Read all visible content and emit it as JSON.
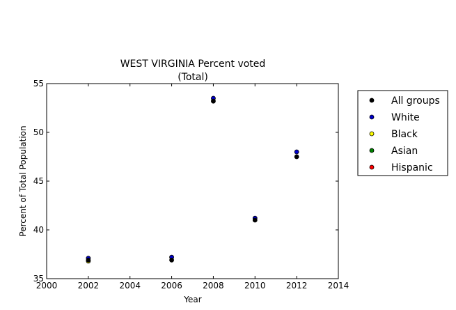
{
  "chart_data": {
    "type": "scatter",
    "title": "WEST VIRGINIA Percent voted",
    "subtitle": "(Total)",
    "xlabel": "Year",
    "ylabel": "Percent of Total Population",
    "xlim": [
      2000,
      2014
    ],
    "ylim": [
      35,
      55
    ],
    "xticks": [
      2000,
      2002,
      2004,
      2006,
      2008,
      2010,
      2012,
      2014
    ],
    "yticks": [
      35,
      40,
      45,
      50,
      55
    ],
    "grid": false,
    "legend_position": "outside-right",
    "series": [
      {
        "name": "All groups",
        "color": "#000000",
        "points": [
          [
            2002,
            36.9
          ],
          [
            2006,
            36.9
          ],
          [
            2008,
            53.2
          ],
          [
            2010,
            41.0
          ],
          [
            2012,
            47.5
          ]
        ]
      },
      {
        "name": "White",
        "color": "#0000cc",
        "points": [
          [
            2002,
            37.1
          ],
          [
            2006,
            37.2
          ],
          [
            2008,
            53.5
          ],
          [
            2010,
            41.2
          ],
          [
            2012,
            48.0
          ]
        ]
      },
      {
        "name": "Black",
        "color": "#ffff00",
        "points": [
          [
            2002,
            36.8
          ]
        ]
      },
      {
        "name": "Asian",
        "color": "#008000",
        "points": []
      },
      {
        "name": "Hispanic",
        "color": "#ff0000",
        "points": []
      }
    ]
  }
}
